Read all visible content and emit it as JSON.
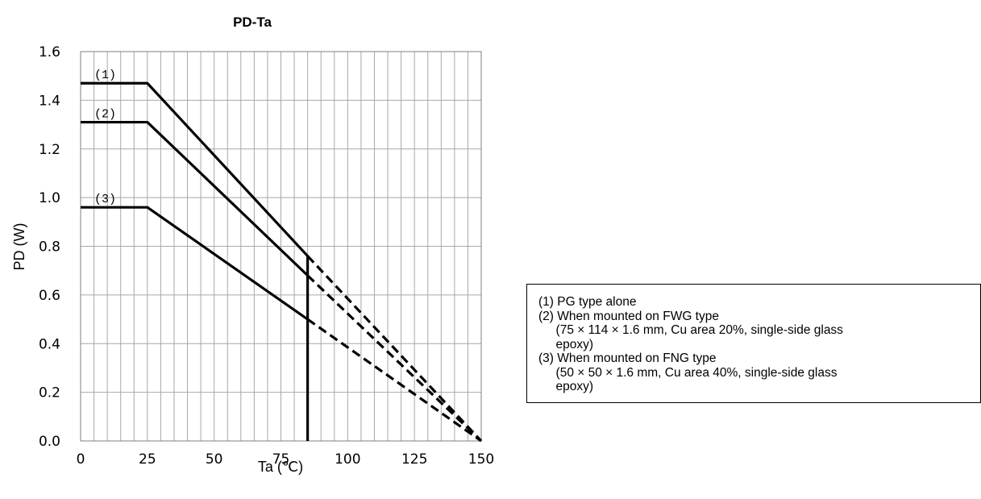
{
  "chart_data": {
    "type": "line",
    "title": "PD-Ta",
    "xlabel": "Ta (℃)",
    "ylabel": "PD (W)",
    "xlim": [
      0,
      150
    ],
    "ylim": [
      0,
      1.6
    ],
    "x_ticks": [
      0,
      25,
      50,
      75,
      100,
      125,
      150
    ],
    "y_ticks": [
      "0.0",
      "0.2",
      "0.4",
      "0.6",
      "0.8",
      "1.0",
      "1.2",
      "1.4",
      "1.6"
    ],
    "grid": true,
    "series": [
      {
        "label": "(1)",
        "solid": [
          [
            0,
            1.47
          ],
          [
            25,
            1.47
          ],
          [
            85,
            0.76
          ]
        ],
        "dashed": [
          [
            85,
            0.76
          ],
          [
            150,
            0.0
          ]
        ]
      },
      {
        "label": "(2)",
        "solid": [
          [
            0,
            1.31
          ],
          [
            25,
            1.31
          ],
          [
            85,
            0.68
          ]
        ],
        "dashed": [
          [
            85,
            0.68
          ],
          [
            150,
            0.0
          ]
        ]
      },
      {
        "label": "(3)",
        "solid": [
          [
            0,
            0.96
          ],
          [
            25,
            0.96
          ],
          [
            85,
            0.5
          ]
        ],
        "dashed": [
          [
            85,
            0.5
          ],
          [
            150,
            0.0
          ]
        ]
      }
    ],
    "vertical_line": {
      "x": 85,
      "y_range": [
        0,
        0.76
      ]
    },
    "legend_placement": "right"
  },
  "legend": {
    "lines": [
      "(1) PG type alone",
      "(2) When mounted on FWG type",
      "     (75 × 114 × 1.6 mm, Cu area 20%, single-side glass",
      "     epoxy)",
      "(3) When mounted on FNG type",
      "     (50 × 50 × 1.6 mm, Cu area 40%, single-side glass",
      "     epoxy)"
    ]
  }
}
